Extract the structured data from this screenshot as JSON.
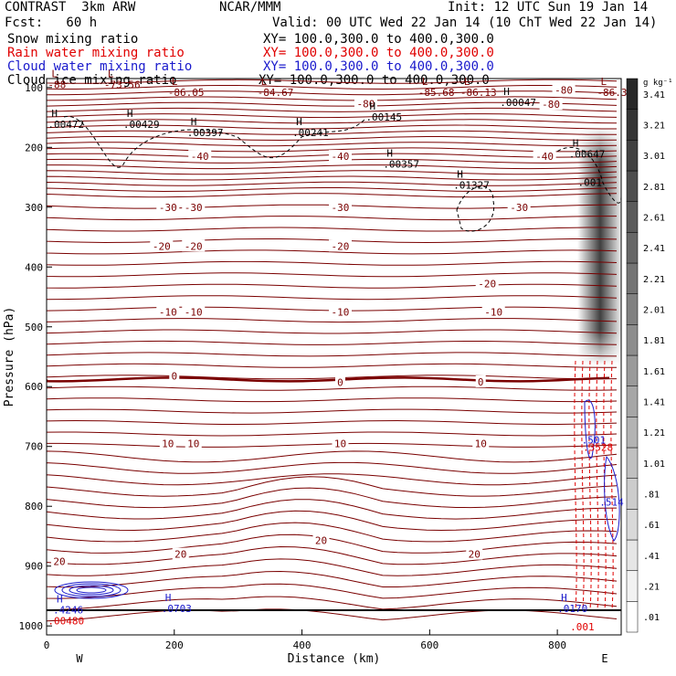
{
  "header": {
    "model": "CONTRAST  3km ARW",
    "center": "NCAR/MMM",
    "init": "Init: 12 UTC Sun 19 Jan 14",
    "fcst": "Fcst:   60 h",
    "valid": "Valid: 00 UTC Wed 22 Jan 14 (10 ChT Wed 22 Jan 14)"
  },
  "fields": [
    {
      "name": "Snow mixing ratio",
      "xy": "XY= 100.0,300.0 to 400.0,300.0",
      "color": "#000000"
    },
    {
      "name": "Rain water mixing ratio",
      "xy": "XY= 100.0,300.0 to 400.0,300.0",
      "color": "#e00000"
    },
    {
      "name": "Cloud water mixing ratio",
      "xy": "XY= 100.0,300.0 to 400.0,300.0",
      "color": "#1a1acc"
    },
    {
      "name": "Cloud ice mixing ratio",
      "xy": "XY= 100.0,300.0 to 400.0,300.0",
      "color": "#000000"
    }
  ],
  "colors": {
    "temp": "#7a0000",
    "rain": "#e00000",
    "cloud": "#1a1acc",
    "ice": "#000000"
  },
  "chart_data": {
    "type": "contour cross-section",
    "xlabel": "Distance (km)",
    "ylabel": "Pressure (hPa)",
    "xlim": [
      0,
      900
    ],
    "ylim": [
      1015,
      85
    ],
    "x_ticks": [
      0,
      200,
      400,
      600,
      800
    ],
    "y_ticks": [
      100,
      200,
      300,
      400,
      500,
      600,
      700,
      800,
      900,
      1000
    ],
    "left_end_label": "W",
    "right_end_label": "E",
    "temperature_contours": [
      {
        "label": "-80",
        "x": 810,
        "p": 104,
        "thick": false
      },
      {
        "label": "-80",
        "x": 790,
        "p": 128,
        "thick": false
      },
      {
        "label": "-80",
        "x": 500,
        "p": 127,
        "thick": false
      },
      {
        "label": "-40",
        "x": 240,
        "p": 215,
        "thick": false
      },
      {
        "label": "-40",
        "x": 460,
        "p": 215,
        "thick": false
      },
      {
        "label": "-40",
        "x": 780,
        "p": 215,
        "thick": false
      },
      {
        "label": "-30",
        "x": 190,
        "p": 300,
        "thick": false
      },
      {
        "label": "-30",
        "x": 230,
        "p": 300,
        "thick": false
      },
      {
        "label": "-30",
        "x": 460,
        "p": 300,
        "thick": false
      },
      {
        "label": "-30",
        "x": 740,
        "p": 300,
        "thick": false
      },
      {
        "label": "-20",
        "x": 180,
        "p": 365,
        "thick": false
      },
      {
        "label": "-20",
        "x": 230,
        "p": 365,
        "thick": false
      },
      {
        "label": "-20",
        "x": 460,
        "p": 365,
        "thick": false
      },
      {
        "label": "-20",
        "x": 690,
        "p": 428,
        "thick": false
      },
      {
        "label": "-10",
        "x": 190,
        "p": 475,
        "thick": false
      },
      {
        "label": "-10",
        "x": 230,
        "p": 475,
        "thick": false
      },
      {
        "label": "-10",
        "x": 460,
        "p": 475,
        "thick": false
      },
      {
        "label": "-10",
        "x": 700,
        "p": 475,
        "thick": false
      },
      {
        "label": "0",
        "x": 200,
        "p": 582,
        "thick": true
      },
      {
        "label": "0",
        "x": 460,
        "p": 593,
        "thick": true
      },
      {
        "label": "0",
        "x": 680,
        "p": 592,
        "thick": true
      },
      {
        "label": "10",
        "x": 190,
        "p": 695,
        "thick": false
      },
      {
        "label": "10",
        "x": 230,
        "p": 695,
        "thick": false
      },
      {
        "label": "10",
        "x": 460,
        "p": 695,
        "thick": false
      },
      {
        "label": "10",
        "x": 680,
        "p": 695,
        "thick": false
      },
      {
        "label": "20",
        "x": 20,
        "p": 892,
        "thick": false
      },
      {
        "label": "20",
        "x": 210,
        "p": 880,
        "thick": false
      },
      {
        "label": "20",
        "x": 430,
        "p": 857,
        "thick": false
      },
      {
        "label": "20",
        "x": 670,
        "p": 880,
        "thick": false
      }
    ],
    "extrema": [
      {
        "kind": "L",
        "value": "-88",
        "x": 2,
        "p": 92,
        "color": "#7a0000"
      },
      {
        "kind": "L",
        "value": "-73.56",
        "x": 90,
        "p": 92,
        "color": "#7a0000"
      },
      {
        "kind": "L",
        "value": "-86.05",
        "x": 190,
        "p": 105,
        "color": "#7a0000"
      },
      {
        "kind": "L",
        "value": "-84.67",
        "x": 330,
        "p": 105,
        "color": "#7a0000"
      },
      {
        "kind": "L",
        "value": "-85.68",
        "x": 582,
        "p": 105,
        "color": "#7a0000"
      },
      {
        "kind": "L",
        "value": "-86.13",
        "x": 648,
        "p": 105,
        "color": "#7a0000"
      },
      {
        "kind": "L",
        "value": "-86.39",
        "x": 862,
        "p": 105,
        "color": "#7a0000"
      },
      {
        "kind": "H",
        "value": ".00429",
        "x": 120,
        "p": 158,
        "color": "#000000"
      },
      {
        "kind": "H",
        "value": ".00397",
        "x": 220,
        "p": 172,
        "color": "#000000"
      },
      {
        "kind": "H",
        "value": ".00241",
        "x": 385,
        "p": 172,
        "color": "#000000"
      },
      {
        "kind": "H",
        "value": ".00145",
        "x": 500,
        "p": 146,
        "color": "#000000"
      },
      {
        "kind": "H",
        "value": ".00047",
        "x": 710,
        "p": 122,
        "color": "#000000"
      },
      {
        "kind": "H",
        "value": ".00472",
        "x": 2,
        "p": 158,
        "color": "#000000"
      },
      {
        "kind": "H",
        "value": ".00357",
        "x": 527,
        "p": 225,
        "color": "#000000"
      },
      {
        "kind": "H",
        "value": ".01327",
        "x": 637,
        "p": 260,
        "color": "#000000"
      },
      {
        "kind": "H",
        "value": ".00647",
        "x": 818,
        "p": 208,
        "color": "#000000"
      },
      {
        "kind": "",
        "value": ".001",
        "x": 832,
        "p": 255,
        "color": "#000000"
      },
      {
        "kind": "H",
        "value": ".4246",
        "x": 10,
        "p": 970,
        "color": "#1a1acc"
      },
      {
        "kind": "H",
        "value": ".0703",
        "x": 180,
        "p": 968,
        "color": "#1a1acc"
      },
      {
        "kind": "H",
        "value": ".0170",
        "x": 800,
        "p": 968,
        "color": "#1a1acc"
      },
      {
        "kind": "",
        "value": ".00480",
        "x": 2,
        "p": 988,
        "color": "#e00000"
      },
      {
        "kind": "",
        "value": ".001",
        "x": 820,
        "p": 998,
        "color": "#e00000"
      },
      {
        "kind": "",
        "value": ".3528",
        "x": 840,
        "p": 698,
        "color": "#e00000"
      },
      {
        "kind": "",
        "value": ".501",
        "x": 838,
        "p": 686,
        "color": "#1a1acc"
      },
      {
        "kind": "",
        "value": ".514",
        "x": 866,
        "p": 790,
        "color": "#1a1acc"
      }
    ],
    "colorbar": {
      "unit": "g kg⁻¹",
      "levels": [
        ".01",
        ".21",
        ".41",
        ".61",
        ".81",
        "1.01",
        "1.21",
        "1.41",
        "1.61",
        "1.81",
        "2.01",
        "2.21",
        "2.41",
        "2.61",
        "2.81",
        "3.01",
        "3.21",
        "3.41"
      ]
    }
  }
}
